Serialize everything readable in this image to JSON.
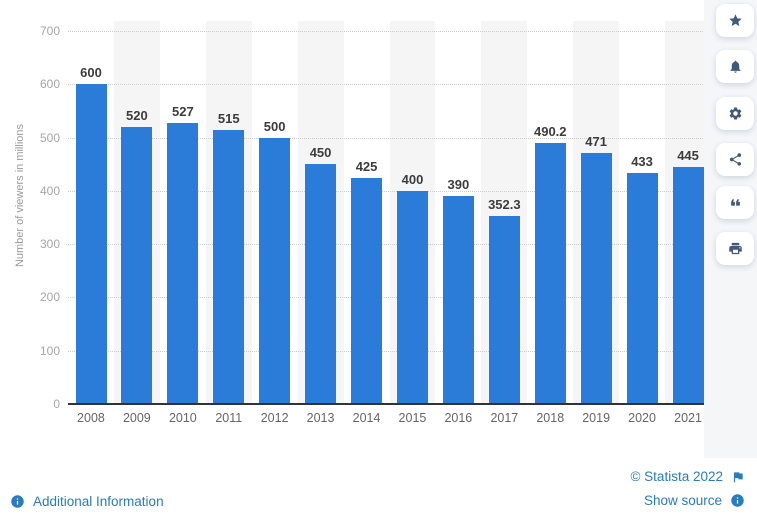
{
  "chart_data": {
    "type": "bar",
    "title": "",
    "categories": [
      "2008",
      "2009",
      "2010",
      "2011",
      "2012",
      "2013",
      "2014",
      "2015",
      "2016",
      "2017",
      "2018",
      "2019",
      "2020",
      "2021"
    ],
    "values": [
      600,
      520,
      527,
      515,
      500,
      450,
      425,
      400,
      390,
      352.3,
      490.2,
      471,
      433,
      445
    ],
    "value_labels": [
      "600",
      "520",
      "527",
      "515",
      "500",
      "450",
      "425",
      "400",
      "390",
      "352.3",
      "490.2",
      "471",
      "433",
      "445"
    ],
    "xlabel": "",
    "ylabel": "Number of viewers in millions",
    "ylim": [
      0,
      700
    ],
    "yticks": [
      0,
      100,
      200,
      300,
      400,
      500,
      600,
      700
    ],
    "grid": "horizontal dotted gridlines",
    "legend": "none",
    "bar_color": "#2b7bd9",
    "band_color": "#f5f5f5"
  },
  "toolbar": {
    "buttons": [
      {
        "name": "favorite",
        "icon": "star-icon"
      },
      {
        "name": "alert",
        "icon": "bell-icon"
      },
      {
        "name": "settings",
        "icon": "gear-icon"
      },
      {
        "name": "share",
        "icon": "share-icon"
      },
      {
        "name": "cite",
        "icon": "quote-icon"
      },
      {
        "name": "print",
        "icon": "printer-icon"
      }
    ]
  },
  "footer": {
    "additional_information": "Additional Information",
    "copyright": "© Statista 2022",
    "show_source": "Show source",
    "link_color": "#2a7bbf"
  }
}
